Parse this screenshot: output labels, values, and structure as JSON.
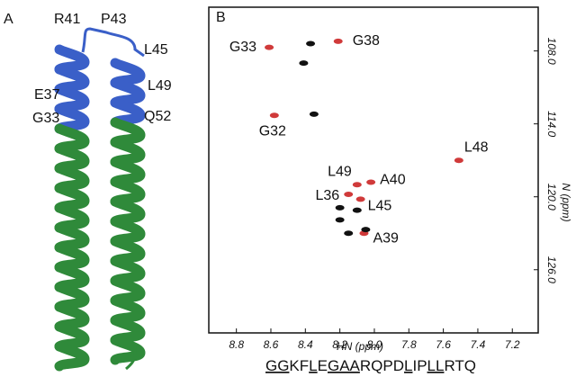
{
  "panel_a": {
    "label": "A",
    "residues": [
      "R41",
      "P43",
      "L45",
      "E37",
      "L49",
      "G33",
      "Q52"
    ]
  },
  "chart_data": {
    "type": "scatter",
    "label": "B",
    "x_label": "HN (ppm)",
    "y_label": "N (ppm)",
    "xlim": [
      8.96,
      7.05
    ],
    "ylim": [
      104.4,
      131.2
    ],
    "xticks": [
      8.8,
      8.6,
      8.4,
      8.2,
      {
        "value": 8.0,
        "label": "8.0"
      },
      7.8,
      7.6,
      7.4,
      7.2
    ],
    "yticks": [
      {
        "value": 108,
        "label": "108.0"
      },
      {
        "value": 114,
        "label": "114.0"
      },
      {
        "value": 120,
        "label": "120.0"
      },
      {
        "value": 126,
        "label": "126.0"
      }
    ],
    "series": [
      {
        "color": "#d03a3a",
        "x": [
          8.61,
          8.21,
          8.58,
          7.51,
          8.1,
          8.02,
          8.15,
          8.08,
          8.06
        ],
        "values": [
          107.7,
          107.2,
          113.3,
          117.0,
          119.0,
          118.8,
          119.8,
          120.2,
          123.0
        ],
        "labels": [
          "G33",
          "G38",
          "G32",
          "L48",
          "L49",
          "A40",
          "L36",
          "L45",
          "A39"
        ]
      },
      {
        "color": "#111111",
        "x": [
          8.37,
          8.41,
          8.35,
          8.2,
          8.1,
          8.2,
          8.15,
          8.05
        ],
        "values": [
          107.4,
          109.0,
          113.2,
          120.9,
          121.1,
          121.9,
          123.0,
          122.7
        ]
      }
    ]
  },
  "sequence": {
    "segments": [
      {
        "text": "GG",
        "underline": true
      },
      {
        "text": "KF",
        "underline": false
      },
      {
        "text": "L",
        "underline": true
      },
      {
        "text": "E",
        "underline": false
      },
      {
        "text": "GAA",
        "underline": true
      },
      {
        "text": "RQPD",
        "underline": false
      },
      {
        "text": "L",
        "underline": true
      },
      {
        "text": "IP",
        "underline": false
      },
      {
        "text": "LL",
        "underline": true
      },
      {
        "text": "RTQ",
        "underline": false
      }
    ]
  }
}
